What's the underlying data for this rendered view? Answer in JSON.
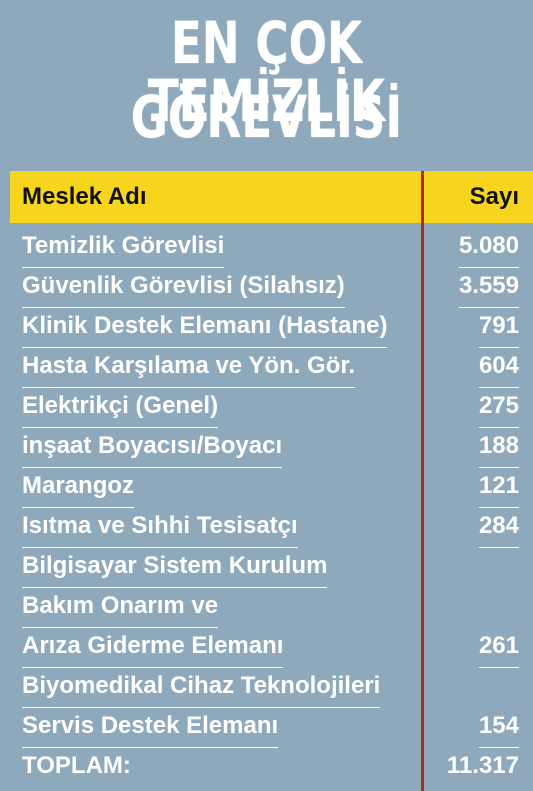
{
  "title": {
    "line1": "EN ÇOK TEMİZLİK",
    "line2": "GÖREVLİSİ"
  },
  "table": {
    "header": {
      "name": "Meslek Adı",
      "value": "Sayı"
    },
    "rows": [
      {
        "lines": [
          "Temizlik Görevlisi"
        ],
        "value": "5.080"
      },
      {
        "lines": [
          "Güvenlik Görevlisi (Silahsız)"
        ],
        "value": "3.559"
      },
      {
        "lines": [
          "Klinik Destek Elemanı (Hastane)"
        ],
        "value": "791"
      },
      {
        "lines": [
          "Hasta Karşılama ve Yön. Gör."
        ],
        "value": "604"
      },
      {
        "lines": [
          "Elektrikçi (Genel)"
        ],
        "value": "275"
      },
      {
        "lines": [
          "inşaat Boyacısı/Boyacı"
        ],
        "value": "188"
      },
      {
        "lines": [
          "Marangoz"
        ],
        "value": "121"
      },
      {
        "lines": [
          "Isıtma ve Sıhhi Tesisatçı"
        ],
        "value": "284"
      },
      {
        "lines": [
          "Bilgisayar Sistem Kurulum",
          "Bakım Onarım ve",
          "Arıza Giderme Elemanı"
        ],
        "value": "261"
      },
      {
        "lines": [
          "Biyomedikal Cihaz Teknolojileri",
          "Servis Destek Elemanı"
        ],
        "value": "154"
      }
    ],
    "total": {
      "name": "TOPLAM:",
      "value": "11.317"
    }
  }
}
